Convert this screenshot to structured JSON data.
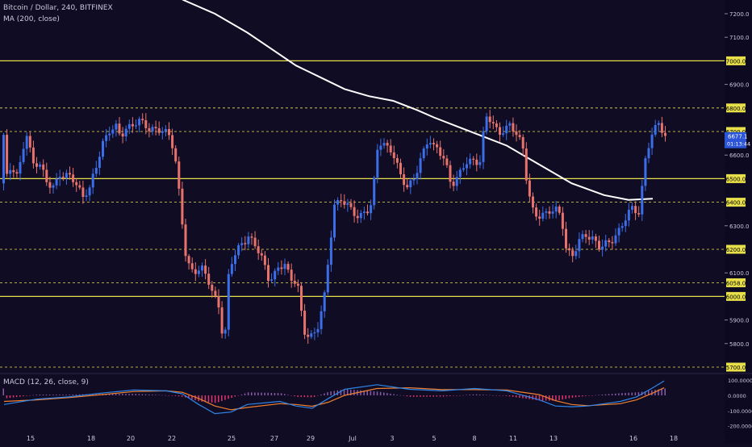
{
  "header": {
    "symbol_line": "Bitcoin / Dollar, 240, BITFINEX",
    "ma_label": "MA (200, close)",
    "macd_label": "MACD (12, 26, close, 9)"
  },
  "colors": {
    "background": "#100c24",
    "up_candle": "#3b6ee8",
    "down_candle": "#e8736c",
    "level_line": "#e8e04a",
    "ma_line": "#ffffff",
    "macd_line": "#2f86e8",
    "signal_line": "#f08030",
    "hist_up": "#8c5aa8",
    "hist_down": "#e0346c"
  },
  "price_axis": {
    "ticks": [
      "7200.0",
      "7100.0",
      "7000.0",
      "6900.0",
      "6800.0",
      "6700.0",
      "6600.0",
      "6500.0",
      "6400.0",
      "6300.0",
      "6200.0",
      "6100.0",
      "6058.0",
      "6000.0",
      "5900.0",
      "5800.0",
      "5700.0"
    ],
    "highlighted": [
      "7000.0",
      "6800.0",
      "6700.0",
      "6500.0",
      "6400.0",
      "6200.0",
      "6058.0",
      "6000.0",
      "5700.0"
    ],
    "current_price": "6677.1",
    "countdown": "01:13:44"
  },
  "macd_axis": {
    "ticks": [
      "100.0000",
      "0.0000",
      "-100.0000",
      "-200.0000"
    ]
  },
  "time_axis": {
    "labels": [
      "15",
      "18",
      "20",
      "22",
      "25",
      "27",
      "29",
      "Jul",
      "3",
      "5",
      "8",
      "11",
      "13",
      "16",
      "18"
    ]
  },
  "chart_data": {
    "type": "candlestick",
    "title": "Bitcoin / Dollar, 240, BITFINEX",
    "ylim": [
      5670,
      7270
    ],
    "key_levels": [
      7000,
      6800,
      6700,
      6500,
      6400,
      6200,
      6058,
      6000,
      5700
    ],
    "solid_levels": [
      7000,
      6500,
      6000
    ],
    "ma_200": [
      [
        11,
        7260
      ],
      [
        13,
        7200
      ],
      [
        15,
        7120
      ],
      [
        16.5,
        7050
      ],
      [
        18,
        6980
      ],
      [
        19.5,
        6930
      ],
      [
        21,
        6880
      ],
      [
        22.5,
        6850
      ],
      [
        24,
        6830
      ],
      [
        25.5,
        6790
      ],
      [
        26.5,
        6760
      ],
      [
        28,
        6720
      ],
      [
        29.5,
        6680
      ],
      [
        31,
        6640
      ],
      [
        32,
        6600
      ],
      [
        33.5,
        6540
      ],
      [
        35,
        6480
      ],
      [
        37,
        6430
      ],
      [
        38.5,
        6410
      ],
      [
        40,
        6415
      ]
    ],
    "waypoints": [
      [
        0,
        6480
      ],
      [
        0.4,
        6560
      ],
      [
        0.8,
        6520
      ],
      [
        1.3,
        6690
      ],
      [
        1.7,
        6560
      ],
      [
        2.1,
        6580
      ],
      [
        2.6,
        6470
      ],
      [
        3,
        6460
      ],
      [
        3.4,
        6530
      ],
      [
        3.9,
        6510
      ],
      [
        4.3,
        6480
      ],
      [
        4.8,
        6430
      ],
      [
        5.2,
        6460
      ],
      [
        5.6,
        6540
      ],
      [
        6,
        6650
      ],
      [
        6.4,
        6710
      ],
      [
        6.8,
        6720
      ],
      [
        7.1,
        6670
      ],
      [
        7.5,
        6720
      ],
      [
        8,
        6740
      ],
      [
        8.4,
        6740
      ],
      [
        8.8,
        6710
      ],
      [
        9.3,
        6720
      ],
      [
        9.8,
        6690
      ],
      [
        10.2,
        6680
      ],
      [
        10.5,
        6580
      ],
      [
        10.8,
        6400
      ],
      [
        11.1,
        6180
      ],
      [
        11.4,
        6100
      ],
      [
        11.7,
        6110
      ],
      [
        12.1,
        6130
      ],
      [
        12.4,
        6090
      ],
      [
        12.8,
        6000
      ],
      [
        13.2,
        5960
      ],
      [
        13.5,
        5780
      ],
      [
        13.8,
        6120
      ],
      [
        14.1,
        6160
      ],
      [
        14.6,
        6230
      ],
      [
        15,
        6260
      ],
      [
        15.5,
        6200
      ],
      [
        15.9,
        6150
      ],
      [
        16.3,
        6070
      ],
      [
        16.8,
        6110
      ],
      [
        17.2,
        6140
      ],
      [
        17.6,
        6080
      ],
      [
        18,
        6070
      ],
      [
        18.4,
        5840
      ],
      [
        18.8,
        5830
      ],
      [
        19.2,
        5860
      ],
      [
        19.7,
        6000
      ],
      [
        20,
        6200
      ],
      [
        20.3,
        6390
      ],
      [
        20.7,
        6420
      ],
      [
        21.2,
        6370
      ],
      [
        21.7,
        6340
      ],
      [
        22.2,
        6360
      ],
      [
        22.6,
        6380
      ],
      [
        23,
        6660
      ],
      [
        23.4,
        6650
      ],
      [
        23.8,
        6620
      ],
      [
        24.3,
        6520
      ],
      [
        24.8,
        6470
      ],
      [
        25.3,
        6510
      ],
      [
        25.7,
        6590
      ],
      [
        26.1,
        6680
      ],
      [
        26.6,
        6630
      ],
      [
        27.1,
        6570
      ],
      [
        27.5,
        6480
      ],
      [
        28,
        6520
      ],
      [
        28.4,
        6560
      ],
      [
        28.9,
        6580
      ],
      [
        29.3,
        6580
      ],
      [
        29.6,
        6760
      ],
      [
        30,
        6740
      ],
      [
        30.4,
        6700
      ],
      [
        30.8,
        6710
      ],
      [
        31.1,
        6720
      ],
      [
        31.5,
        6690
      ],
      [
        31.9,
        6650
      ],
      [
        32.2,
        6470
      ],
      [
        32.5,
        6360
      ],
      [
        32.8,
        6330
      ],
      [
        33.1,
        6350
      ],
      [
        33.6,
        6370
      ],
      [
        34,
        6360
      ],
      [
        34.3,
        6330
      ],
      [
        34.6,
        6200
      ],
      [
        35,
        6180
      ],
      [
        35.4,
        6230
      ],
      [
        35.8,
        6260
      ],
      [
        36.3,
        6250
      ],
      [
        36.7,
        6200
      ],
      [
        37.1,
        6220
      ],
      [
        37.5,
        6250
      ],
      [
        37.9,
        6290
      ],
      [
        38.3,
        6330
      ],
      [
        38.7,
        6380
      ],
      [
        39.1,
        6360
      ],
      [
        39.5,
        6600
      ],
      [
        39.9,
        6680
      ],
      [
        40.3,
        6750
      ],
      [
        40.7,
        6677
      ]
    ]
  },
  "macd_chart": {
    "ylim": [
      -250,
      120
    ],
    "macd_line": [
      [
        0,
        -60
      ],
      [
        2,
        -25
      ],
      [
        4,
        -10
      ],
      [
        6,
        15
      ],
      [
        8,
        35
      ],
      [
        10,
        30
      ],
      [
        11,
        10
      ],
      [
        12,
        -60
      ],
      [
        13,
        -120
      ],
      [
        14,
        -110
      ],
      [
        15,
        -60
      ],
      [
        17,
        -40
      ],
      [
        18,
        -70
      ],
      [
        19,
        -85
      ],
      [
        20,
        -20
      ],
      [
        21,
        40
      ],
      [
        23,
        70
      ],
      [
        25,
        40
      ],
      [
        27,
        30
      ],
      [
        29,
        45
      ],
      [
        31,
        30
      ],
      [
        33,
        -30
      ],
      [
        34,
        -70
      ],
      [
        35,
        -75
      ],
      [
        36,
        -70
      ],
      [
        38,
        -40
      ],
      [
        39,
        -10
      ],
      [
        40,
        50
      ],
      [
        40.7,
        95
      ]
    ],
    "signal_line": [
      [
        0,
        -40
      ],
      [
        2,
        -30
      ],
      [
        4,
        -15
      ],
      [
        6,
        5
      ],
      [
        8,
        25
      ],
      [
        10,
        30
      ],
      [
        11,
        20
      ],
      [
        12,
        -20
      ],
      [
        13,
        -70
      ],
      [
        14,
        -95
      ],
      [
        15,
        -80
      ],
      [
        17,
        -55
      ],
      [
        18,
        -60
      ],
      [
        19,
        -72
      ],
      [
        20,
        -45
      ],
      [
        21,
        0
      ],
      [
        23,
        45
      ],
      [
        25,
        50
      ],
      [
        27,
        38
      ],
      [
        29,
        38
      ],
      [
        31,
        35
      ],
      [
        33,
        5
      ],
      [
        34,
        -35
      ],
      [
        35,
        -60
      ],
      [
        36,
        -68
      ],
      [
        38,
        -55
      ],
      [
        39,
        -30
      ],
      [
        40,
        15
      ],
      [
        40.7,
        50
      ]
    ]
  }
}
